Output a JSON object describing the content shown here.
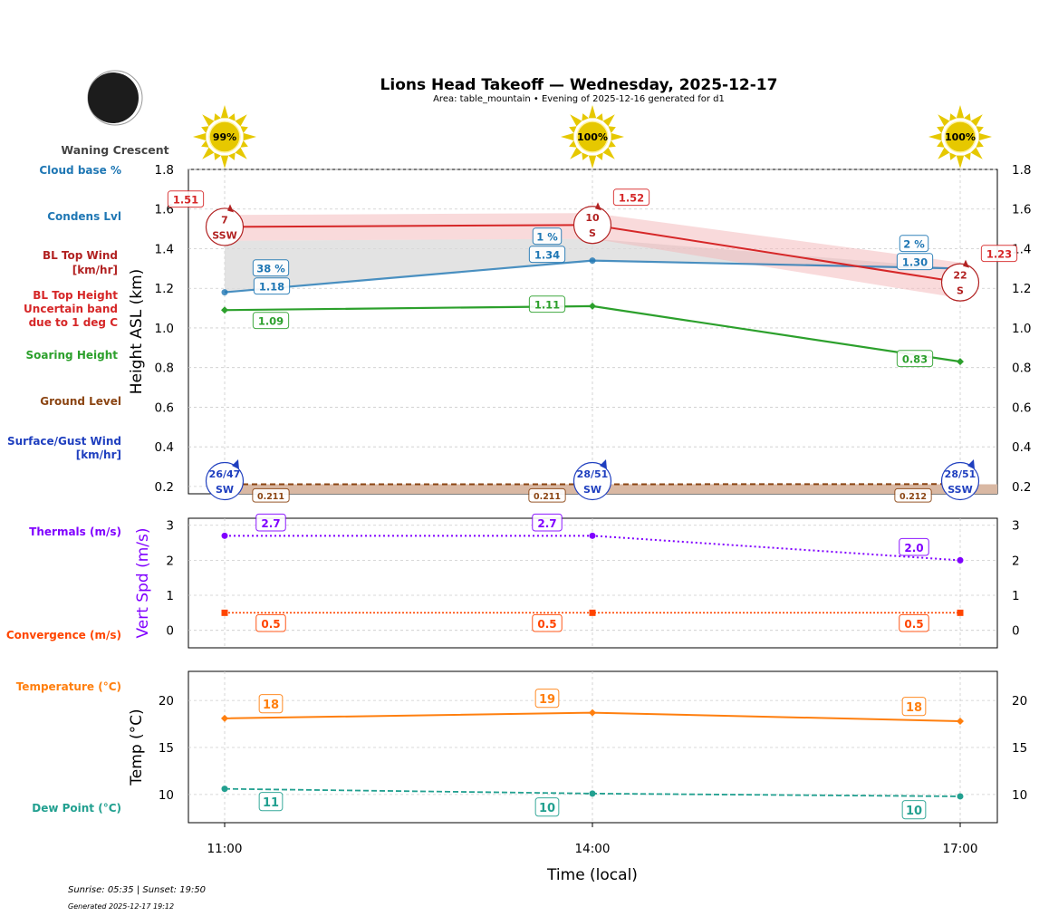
{
  "title": "Lions Head Takeoff — Wednesday, 2025-12-17",
  "subtitle": "Area: table_mountain • Evening of 2025-12-16 generated for d1",
  "moon_phase": "Waning Crescent",
  "sun_coverage": [
    "99%",
    "100%",
    "100%"
  ],
  "footer": {
    "sun": "Sunrise: 05:35 | Sunset: 19:50",
    "generated": "Generated 2025-12-17 19:12"
  },
  "side_labels": {
    "cloud_base": "Cloud base %",
    "condens": "Condens Lvl",
    "bl_wind_1": "BL Top Wind",
    "bl_wind_2": "[km/hr]",
    "bl_height_1": "BL Top Height",
    "bl_height_2": "Uncertain band",
    "bl_height_3": "due to 1 deg C",
    "soaring": "Soaring Height",
    "ground": "Ground Level",
    "surface_1": "Surface/Gust Wind",
    "surface_2": "[km/hr]",
    "thermals": "Thermals (m/s)",
    "convergence": "Convergence (m/s)",
    "temperature": "Temperature (°C)",
    "dewpoint": "Dew Point (°C)"
  },
  "colors": {
    "bl_top": "#d62728",
    "bl_wind": "#b22222",
    "condens": "#1f77b4",
    "soaring": "#2ca02c",
    "ground": "#8b4513",
    "surface": "#1f3fbf",
    "thermals": "#8000ff",
    "convergence": "#ff4500",
    "temperature": "#ff7f0e",
    "dewpoint": "#22a090"
  },
  "chart_data": [
    {
      "type": "line",
      "ylabel": "Height ASL (km)",
      "ylim": [
        0.163,
        1.8
      ],
      "yticks": [
        "0.2",
        "0.4",
        "0.6",
        "0.8",
        "1.0",
        "1.2",
        "1.4",
        "1.6",
        "1.8"
      ],
      "x": [
        "11:00",
        "14:00",
        "17:00"
      ],
      "grid": true,
      "series": {
        "bl_top": {
          "values": [
            1.51,
            1.52,
            1.23
          ],
          "labels": [
            "1.51",
            "1.52",
            "1.23"
          ],
          "band_upper": [
            1.57,
            1.58,
            1.33
          ],
          "band_lower": [
            1.44,
            1.45,
            1.15
          ]
        },
        "condens": {
          "values": [
            1.18,
            1.34,
            1.3
          ],
          "labels": [
            "1.18",
            "1.34",
            "1.30"
          ],
          "cloud_pct": [
            "38 %",
            "1 %",
            "2 %"
          ]
        },
        "soaring": {
          "values": [
            1.09,
            1.11,
            0.83
          ],
          "labels": [
            "1.09",
            "1.11",
            "0.83"
          ]
        },
        "ground": {
          "values": [
            0.211,
            0.211,
            0.212
          ],
          "labels": [
            "0.211",
            "0.211",
            "0.212"
          ]
        },
        "bl_wind": {
          "speed": [
            "7",
            "10",
            "22"
          ],
          "dir": [
            "SSW",
            "S",
            "S"
          ]
        },
        "surface_wind": {
          "speed": [
            "26/47",
            "28/51",
            "28/51"
          ],
          "dir": [
            "SW",
            "SW",
            "SSW"
          ]
        }
      }
    },
    {
      "type": "line",
      "ylabel": "Vert Spd (m/s)",
      "ylim": [
        -0.5,
        3.2
      ],
      "yticks": [
        "0",
        "1",
        "2",
        "3"
      ],
      "x": [
        "11:00",
        "14:00",
        "17:00"
      ],
      "series": {
        "thermals": {
          "values": [
            2.7,
            2.7,
            2.0
          ],
          "labels": [
            "2.7",
            "2.7",
            "2.0"
          ]
        },
        "convergence": {
          "values": [
            0.5,
            0.5,
            0.5
          ],
          "labels": [
            "0.5",
            "0.5",
            "0.5"
          ]
        }
      }
    },
    {
      "type": "line",
      "ylabel": "Temp (°C)",
      "xlabel": "Time (local)",
      "ylim": [
        7.0,
        23.1
      ],
      "yticks": [
        "10",
        "15",
        "20"
      ],
      "x": [
        "11:00",
        "14:00",
        "17:00"
      ],
      "series": {
        "temperature": {
          "values": [
            18.1,
            18.7,
            17.8
          ],
          "labels": [
            "18",
            "19",
            "18"
          ]
        },
        "dewpoint": {
          "values": [
            10.6,
            10.1,
            9.8
          ],
          "labels": [
            "11",
            "10",
            "10"
          ]
        }
      }
    }
  ]
}
